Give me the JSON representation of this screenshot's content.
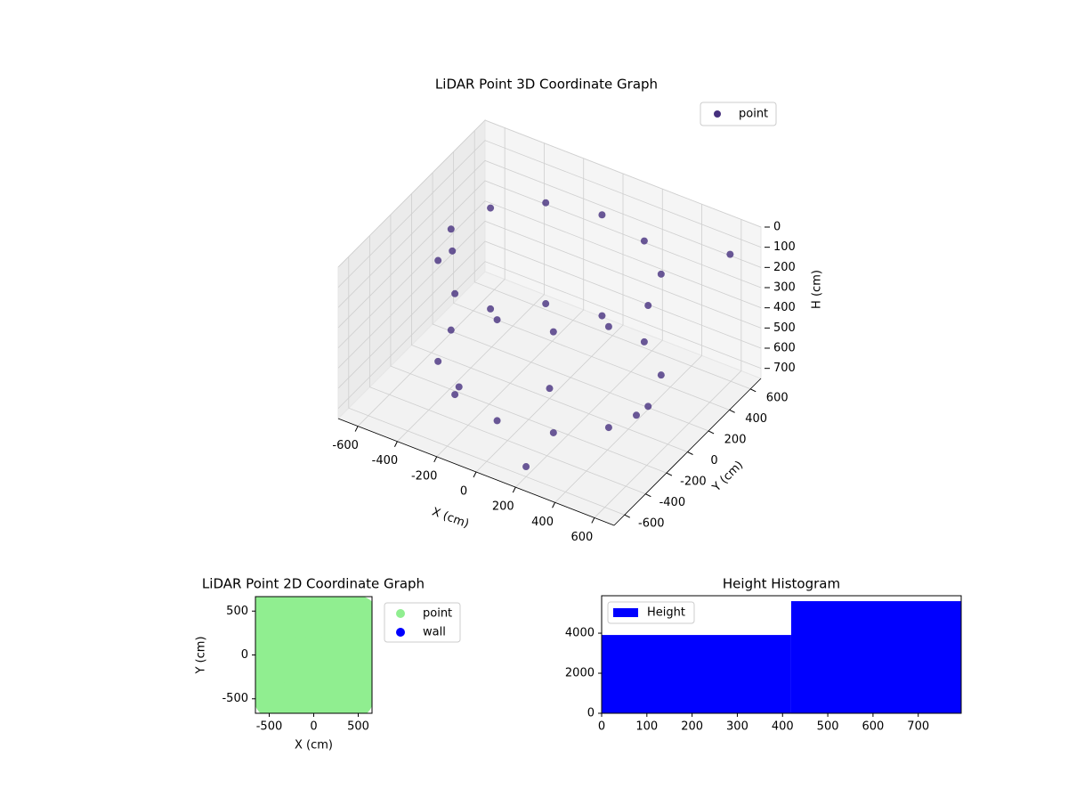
{
  "chart_data": [
    {
      "type": "scatter3d",
      "title": "LiDAR Point 3D Coordinate Graph",
      "xlabel": "X (cm)",
      "ylabel": "Y (cm)",
      "zlabel": "H (cm)",
      "xlim": [
        -700,
        700
      ],
      "ylim": [
        -700,
        700
      ],
      "zlim": [
        0,
        750
      ],
      "z_inverted": true,
      "xticks": [
        -600,
        -400,
        -200,
        0,
        200,
        400,
        600
      ],
      "yticks": [
        -600,
        -400,
        -200,
        0,
        200,
        400,
        600
      ],
      "zticks": [
        0,
        100,
        200,
        300,
        400,
        500,
        600,
        700
      ],
      "grid": true,
      "legend": "upper right",
      "series": [
        {
          "name": "point",
          "color": "#46307e",
          "x": [
            500,
            433,
            250,
            0,
            -250,
            -433,
            -500,
            -433,
            -250,
            0,
            250,
            433,
            500,
            433,
            250,
            0,
            -250,
            -433,
            -500,
            -433,
            -250,
            0,
            250,
            433,
            0,
            -600,
            600,
            200,
            -300,
            650
          ],
          "y": [
            0,
            250,
            433,
            500,
            433,
            250,
            0,
            -250,
            -433,
            -500,
            -433,
            -250,
            0,
            250,
            433,
            500,
            433,
            250,
            0,
            -250,
            -433,
            -500,
            -433,
            -250,
            0,
            200,
            -300,
            -600,
            -300,
            500
          ],
          "z": [
            100,
            100,
            100,
            100,
            100,
            100,
            100,
            100,
            100,
            100,
            100,
            100,
            600,
            600,
            600,
            600,
            600,
            600,
            600,
            600,
            600,
            600,
            600,
            600,
            700,
            350,
            450,
            700,
            650,
            50
          ]
        }
      ]
    },
    {
      "type": "scatter",
      "title": "LiDAR Point 2D Coordinate Graph",
      "xlabel": "X (cm)",
      "ylabel": "Y (cm)",
      "xlim": [
        -655,
        655
      ],
      "ylim": [
        -665,
        665
      ],
      "xticks": [
        -500,
        0,
        500
      ],
      "yticks": [
        -500,
        0,
        500
      ],
      "legend": "outside right",
      "series": [
        {
          "name": "point",
          "color": "#90ee90",
          "x": [
            -500,
            -300,
            0,
            300,
            500,
            -550,
            -300,
            0,
            300,
            550,
            -600,
            -300,
            0,
            300,
            600,
            -550,
            -300,
            0,
            300,
            550,
            -450,
            -200,
            0,
            250,
            450
          ],
          "y": [
            500,
            550,
            600,
            550,
            450,
            250,
            300,
            300,
            300,
            250,
            0,
            0,
            0,
            0,
            0,
            -250,
            -300,
            -300,
            -300,
            -250,
            -500,
            -600,
            -550,
            -600,
            -500
          ]
        },
        {
          "name": "wall",
          "color": "#0000ff",
          "x": [],
          "y": []
        }
      ]
    },
    {
      "type": "histogram",
      "title": "Height Histogram",
      "bins": [
        0,
        419,
        795
      ],
      "counts": [
        3910,
        5600
      ],
      "series_name": "Height",
      "color": "#0000ff",
      "xlim": [
        0,
        795
      ],
      "ylim": [
        0,
        5870
      ],
      "xticks": [
        0,
        100,
        200,
        300,
        400,
        500,
        600,
        700
      ],
      "yticks": [
        0,
        2000,
        4000
      ],
      "legend": "upper left"
    }
  ]
}
